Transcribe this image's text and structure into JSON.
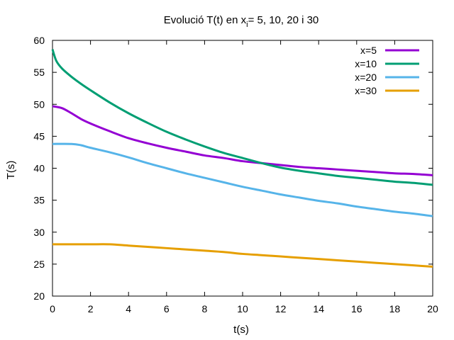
{
  "chart_data": {
    "type": "line",
    "title_main": "Evolució T(t) en x",
    "title_sub": "i",
    "title_rest": "= 5, 10, 20 i 30",
    "xlabel": "t(s)",
    "ylabel": "T(s)",
    "xlim": [
      0,
      20
    ],
    "ylim": [
      20,
      60
    ],
    "xticks": [
      0,
      2,
      4,
      6,
      8,
      10,
      12,
      14,
      16,
      18,
      20
    ],
    "yticks": [
      20,
      25,
      30,
      35,
      40,
      45,
      50,
      55,
      60
    ],
    "grid": false,
    "legend_position": "top-right",
    "series": [
      {
        "name": "x=5",
        "color": "#9400d3",
        "points": [
          [
            0,
            49.7
          ],
          [
            0.5,
            49.4
          ],
          [
            1,
            48.6
          ],
          [
            1.5,
            47.7
          ],
          [
            2,
            47.0
          ],
          [
            3,
            45.8
          ],
          [
            4,
            44.7
          ],
          [
            5,
            43.9
          ],
          [
            6,
            43.2
          ],
          [
            7,
            42.6
          ],
          [
            8,
            42.0
          ],
          [
            9,
            41.6
          ],
          [
            10,
            41.1
          ],
          [
            11,
            40.8
          ],
          [
            12,
            40.5
          ],
          [
            13,
            40.2
          ],
          [
            14,
            40.0
          ],
          [
            15,
            39.8
          ],
          [
            16,
            39.6
          ],
          [
            17,
            39.4
          ],
          [
            18,
            39.2
          ],
          [
            19,
            39.1
          ],
          [
            20,
            38.9
          ]
        ]
      },
      {
        "name": "x=10",
        "color": "#009e73",
        "points": [
          [
            0,
            58.6
          ],
          [
            0.2,
            56.8
          ],
          [
            0.5,
            55.6
          ],
          [
            1,
            54.3
          ],
          [
            1.5,
            53.2
          ],
          [
            2,
            52.2
          ],
          [
            3,
            50.3
          ],
          [
            4,
            48.6
          ],
          [
            5,
            47.1
          ],
          [
            6,
            45.7
          ],
          [
            7,
            44.5
          ],
          [
            8,
            43.4
          ],
          [
            9,
            42.4
          ],
          [
            10,
            41.6
          ],
          [
            11,
            40.8
          ],
          [
            12,
            40.1
          ],
          [
            13,
            39.6
          ],
          [
            14,
            39.2
          ],
          [
            15,
            38.8
          ],
          [
            16,
            38.5
          ],
          [
            17,
            38.2
          ],
          [
            18,
            37.9
          ],
          [
            19,
            37.7
          ],
          [
            20,
            37.4
          ]
        ]
      },
      {
        "name": "x=20",
        "color": "#56b4e9",
        "points": [
          [
            0,
            43.8
          ],
          [
            1,
            43.8
          ],
          [
            1.5,
            43.6
          ],
          [
            2,
            43.2
          ],
          [
            3,
            42.5
          ],
          [
            4,
            41.7
          ],
          [
            5,
            40.8
          ],
          [
            6,
            40.0
          ],
          [
            7,
            39.2
          ],
          [
            8,
            38.5
          ],
          [
            9,
            37.8
          ],
          [
            10,
            37.1
          ],
          [
            11,
            36.5
          ],
          [
            12,
            35.9
          ],
          [
            13,
            35.4
          ],
          [
            14,
            34.9
          ],
          [
            15,
            34.5
          ],
          [
            16,
            34.0
          ],
          [
            17,
            33.6
          ],
          [
            18,
            33.2
          ],
          [
            19,
            32.9
          ],
          [
            20,
            32.5
          ]
        ]
      },
      {
        "name": "x=30",
        "color": "#e69f00",
        "points": [
          [
            0,
            28.1
          ],
          [
            1,
            28.1
          ],
          [
            2,
            28.1
          ],
          [
            3,
            28.1
          ],
          [
            4,
            27.9
          ],
          [
            5,
            27.7
          ],
          [
            6,
            27.5
          ],
          [
            7,
            27.3
          ],
          [
            8,
            27.1
          ],
          [
            9,
            26.9
          ],
          [
            10,
            26.6
          ],
          [
            11,
            26.4
          ],
          [
            12,
            26.2
          ],
          [
            13,
            26.0
          ],
          [
            14,
            25.8
          ],
          [
            15,
            25.6
          ],
          [
            16,
            25.4
          ],
          [
            17,
            25.2
          ],
          [
            18,
            25.0
          ],
          [
            19,
            24.8
          ],
          [
            20,
            24.6
          ]
        ]
      }
    ]
  }
}
